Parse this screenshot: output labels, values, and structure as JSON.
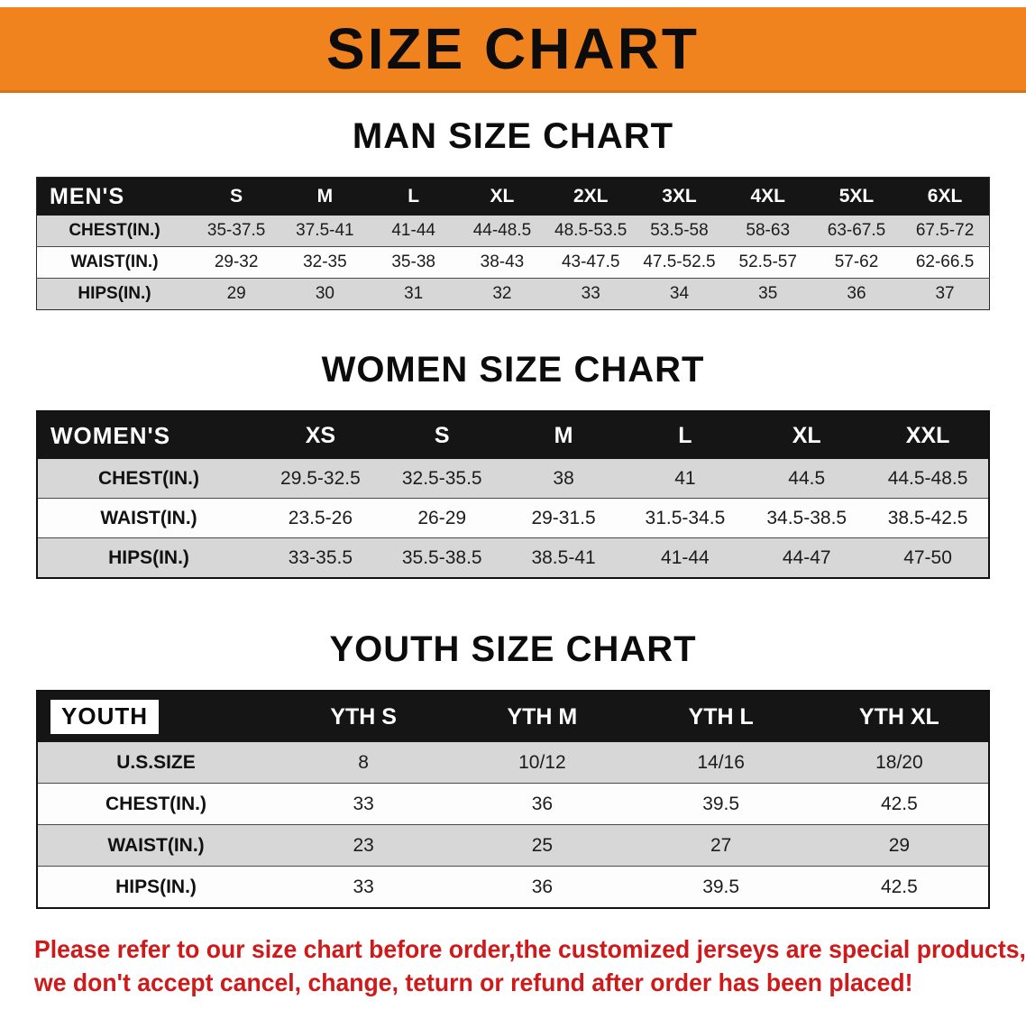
{
  "banner": {
    "title": "SIZE CHART",
    "bg_color": "#F0831E",
    "text_color": "#0C0C0C"
  },
  "sections": [
    {
      "title": "MAN SIZE CHART",
      "header_label": "MEN'S",
      "columns": [
        "S",
        "M",
        "L",
        "XL",
        "2XL",
        "3XL",
        "4XL",
        "5XL",
        "6XL"
      ],
      "rows": [
        {
          "label": "CHEST(IN.)",
          "values": [
            "35-37.5",
            "37.5-41",
            "41-44",
            "44-48.5",
            "48.5-53.5",
            "53.5-58",
            "58-63",
            "63-67.5",
            "67.5-72"
          ]
        },
        {
          "label": "WAIST(IN.)",
          "values": [
            "29-32",
            "32-35",
            "35-38",
            "38-43",
            "43-47.5",
            "47.5-52.5",
            "52.5-57",
            "57-62",
            "62-66.5"
          ]
        },
        {
          "label": "HIPS(IN.)",
          "values": [
            "29",
            "30",
            "31",
            "32",
            "33",
            "34",
            "35",
            "36",
            "37"
          ]
        }
      ]
    },
    {
      "title": "WOMEN SIZE CHART",
      "header_label": "WOMEN'S",
      "columns": [
        "XS",
        "S",
        "M",
        "L",
        "XL",
        "XXL"
      ],
      "rows": [
        {
          "label": "CHEST(IN.)",
          "values": [
            "29.5-32.5",
            "32.5-35.5",
            "38",
            "41",
            "44.5",
            "44.5-48.5"
          ]
        },
        {
          "label": "WAIST(IN.)",
          "values": [
            "23.5-26",
            "26-29",
            "29-31.5",
            "31.5-34.5",
            "34.5-38.5",
            "38.5-42.5"
          ]
        },
        {
          "label": "HIPS(IN.)",
          "values": [
            "33-35.5",
            "35.5-38.5",
            "38.5-41",
            "41-44",
            "44-47",
            "47-50"
          ]
        }
      ]
    },
    {
      "title": "YOUTH SIZE CHART",
      "header_label": "YOUTH",
      "columns": [
        "YTH S",
        "YTH M",
        "YTH L",
        "YTH XL"
      ],
      "rows": [
        {
          "label": "U.S.SIZE",
          "values": [
            "8",
            "10/12",
            "14/16",
            "18/20"
          ]
        },
        {
          "label": "CHEST(IN.)",
          "values": [
            "33",
            "36",
            "39.5",
            "42.5"
          ]
        },
        {
          "label": "WAIST(IN.)",
          "values": [
            "23",
            "25",
            "27",
            "29"
          ]
        },
        {
          "label": "HIPS(IN.)",
          "values": [
            "33",
            "36",
            "39.5",
            "42.5"
          ]
        }
      ]
    }
  ],
  "footer": {
    "line1": "Please refer to our size chart before order,the customized jerseys are special products,",
    "line2": "we don't accept cancel, change, teturn or refund after order has been placed!",
    "text_color": "#CE1A1A"
  },
  "colors": {
    "row_stripe": "#D7D7D7",
    "header_bar": "#151515",
    "table_border": "#111111"
  }
}
